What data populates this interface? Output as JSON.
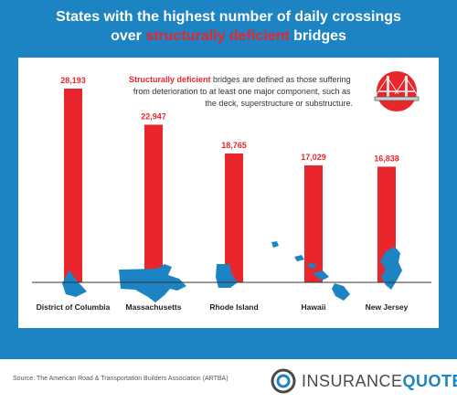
{
  "title": {
    "line1": "States with the highest number of daily crossings",
    "line2_pre": "over ",
    "line2_highlight": "structurally deficient",
    "line2_post": " bridges"
  },
  "note": {
    "highlight": "Structurally deficient",
    "line1_rest": " bridges are defined as those suffering",
    "line2": "from deterioration to at least one major component, such as",
    "line3": "the deck, superstructure or substructure."
  },
  "chart_data": {
    "type": "bar",
    "categories": [
      "District of Columbia",
      "Massachusetts",
      "Rhode Island",
      "Hawaii",
      "New Jersey"
    ],
    "values": [
      28193,
      22947,
      18765,
      17029,
      16838
    ],
    "value_labels": [
      "28,193",
      "22,947",
      "18,765",
      "17,029",
      "16,838"
    ],
    "title": "States with the highest number of daily crossings over structurally deficient bridges",
    "xlabel": "",
    "ylabel": "",
    "ylim": [
      0,
      28193
    ],
    "grid": false,
    "bar_color": "#e8262b",
    "value_label_color": "#e8262b",
    "map_color": "#1d84c4"
  },
  "footer": {
    "source": "Source: The American Road & Transportation Builders Association (ARTBA)",
    "logo_word1": "INSURANCE",
    "logo_word2": "QUOTES"
  },
  "colors": {
    "frame": "#1d84c4",
    "accent": "#e8262b",
    "bar": "#e8262b"
  },
  "icons": {
    "bridge": "bridge-icon",
    "logo": "insurancequotes-logo-icon"
  }
}
